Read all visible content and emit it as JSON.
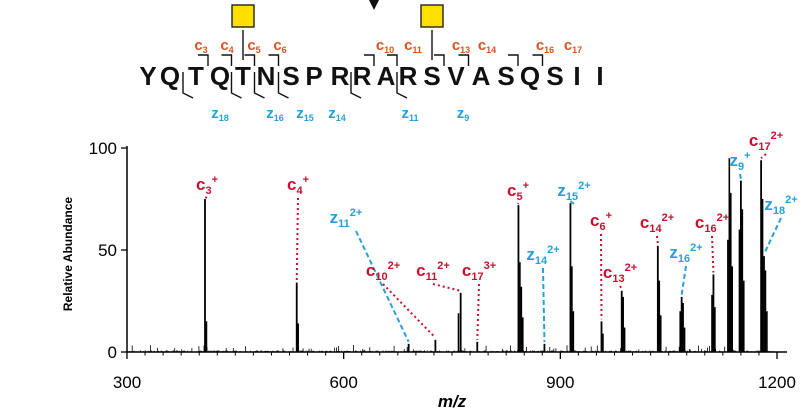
{
  "chart_data": {
    "type": "line",
    "sequence": "YQTQTNSPRRARSVASQSII",
    "glyco_sites": [
      5,
      13
    ],
    "cleavage_marker_after": 9,
    "c_ions": [
      3,
      4,
      5,
      6,
      10,
      11,
      13,
      14,
      16,
      17
    ],
    "z_ions": [
      18,
      16,
      15,
      14,
      11,
      9
    ],
    "xlabel": "m/z",
    "ylabel": "Relative Abundance",
    "xlim": [
      300,
      1200
    ],
    "ylim": [
      0,
      100
    ],
    "x_ticks": [
      300,
      600,
      900,
      1200
    ],
    "y_ticks": [
      0,
      50,
      100
    ],
    "colors": {
      "c_ion": "#c8102e",
      "c_ion_sequence": "#d9531e",
      "z_ion": "#2a9fd6",
      "glycan": "#ffe000",
      "spectrum": "#000000"
    },
    "peaks": [
      {
        "mz": 408,
        "intensity": 75,
        "label": "c",
        "sub": "3",
        "sup": "+",
        "ion": "c"
      },
      {
        "mz": 535,
        "intensity": 34,
        "label": "c",
        "sub": "4",
        "sup": "+",
        "ion": "c"
      },
      {
        "mz": 690,
        "intensity": 4,
        "label": "z",
        "sub": "11",
        "sup": "2+",
        "ion": "z"
      },
      {
        "mz": 727,
        "intensity": 6,
        "label": "c",
        "sub": "10",
        "sup": "2+",
        "ion": "c"
      },
      {
        "mz": 762,
        "intensity": 29,
        "label": "c",
        "sub": "11",
        "sup": "2+",
        "ion": "c"
      },
      {
        "mz": 785,
        "intensity": 5,
        "label": "c",
        "sub": "17",
        "sup": "3+",
        "ion": "c"
      },
      {
        "mz": 842,
        "intensity": 72,
        "label": "c",
        "sub": "5",
        "sup": "+",
        "ion": "c"
      },
      {
        "mz": 878,
        "intensity": 4,
        "label": "z",
        "sub": "14",
        "sup": "2+",
        "ion": "z"
      },
      {
        "mz": 914,
        "intensity": 73,
        "label": "z",
        "sub": "15",
        "sup": "2+",
        "ion": "z"
      },
      {
        "mz": 957,
        "intensity": 15,
        "label": "c",
        "sub": "6",
        "sup": "+",
        "ion": "c"
      },
      {
        "mz": 985,
        "intensity": 30,
        "label": "c",
        "sub": "13",
        "sup": "2+",
        "ion": "c"
      },
      {
        "mz": 1035,
        "intensity": 52,
        "label": "c",
        "sub": "14",
        "sup": "2+",
        "ion": "c"
      },
      {
        "mz": 1068,
        "intensity": 27,
        "label": "z",
        "sub": "16",
        "sup": "2+",
        "ion": "z"
      },
      {
        "mz": 1112,
        "intensity": 38,
        "label": "c",
        "sub": "16",
        "sup": "2+",
        "ion": "c"
      },
      {
        "mz": 1150,
        "intensity": 84,
        "label": "z",
        "sub": "9",
        "sup": "+",
        "ion": "z"
      },
      {
        "mz": 1178,
        "intensity": 94,
        "label": "c",
        "sub": "17",
        "sup": "2+",
        "ion": "c"
      },
      {
        "mz": 1182,
        "intensity": 47,
        "label": "z",
        "sub": "18",
        "sup": "2+",
        "ion": "z"
      }
    ],
    "other_peaks": [
      {
        "mz": 410,
        "intensity": 15
      },
      {
        "mz": 537,
        "intensity": 14
      },
      {
        "mz": 759,
        "intensity": 19
      },
      {
        "mz": 844,
        "intensity": 44
      },
      {
        "mz": 846,
        "intensity": 32
      },
      {
        "mz": 848,
        "intensity": 17
      },
      {
        "mz": 916,
        "intensity": 42
      },
      {
        "mz": 918,
        "intensity": 20
      },
      {
        "mz": 959,
        "intensity": 9
      },
      {
        "mz": 987,
        "intensity": 27
      },
      {
        "mz": 989,
        "intensity": 12
      },
      {
        "mz": 1037,
        "intensity": 35
      },
      {
        "mz": 1039,
        "intensity": 18
      },
      {
        "mz": 1066,
        "intensity": 20
      },
      {
        "mz": 1070,
        "intensity": 24
      },
      {
        "mz": 1072,
        "intensity": 12
      },
      {
        "mz": 1110,
        "intensity": 28
      },
      {
        "mz": 1114,
        "intensity": 22
      },
      {
        "mz": 1132,
        "intensity": 55
      },
      {
        "mz": 1134,
        "intensity": 95
      },
      {
        "mz": 1136,
        "intensity": 78
      },
      {
        "mz": 1138,
        "intensity": 42
      },
      {
        "mz": 1148,
        "intensity": 60
      },
      {
        "mz": 1152,
        "intensity": 70
      },
      {
        "mz": 1154,
        "intensity": 35
      },
      {
        "mz": 1180,
        "intensity": 75
      },
      {
        "mz": 1184,
        "intensity": 40
      },
      {
        "mz": 1186,
        "intensity": 20
      }
    ]
  }
}
